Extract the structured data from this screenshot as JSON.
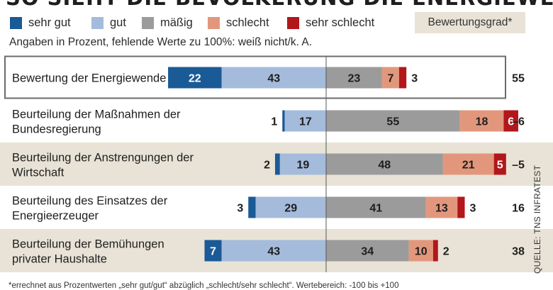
{
  "title": "SO SIEHT DIE BEVÖLKERUNG DIE ENERGIEWENDE",
  "legend": {
    "items": [
      {
        "label": "sehr gut",
        "color": "#1a5a96"
      },
      {
        "label": "gut",
        "color": "#a5bbdc"
      },
      {
        "label": "mäßig",
        "color": "#9b9b9b"
      },
      {
        "label": "schlecht",
        "color": "#e2977c"
      },
      {
        "label": "sehr schlecht",
        "color": "#b1171b"
      }
    ],
    "score_header": "Bewertungsgrad*"
  },
  "subtitle": "Angaben in Prozent, fehlende Werte zu 100%: weiß nicht/k. A.",
  "footnote": "*errechnet aus Prozentwerten „sehr gut/gut“ abzüglich „schlecht/sehr schlecht“. Wertebereich: -100 bis +100",
  "source": "QUELLE: TNS INFRATEST",
  "chart_data": {
    "type": "bar",
    "subtype": "diverging-stacked-horizontal",
    "categories": [
      "Bewertung der Energiewende",
      "Beurteilung der Maßnahmen der Bundesregierung",
      "Beurteilung der Anstrengungen der Wirtschaft",
      "Beurteilung des Einsatzes der Energieerzeuger",
      "Beurteilung der Bemühungen privater Haushalte"
    ],
    "category_lines": [
      [
        "Bewertung der Energiewende"
      ],
      [
        "Beurteilung der Maßnahmen der",
        "Bundesregierung"
      ],
      [
        "Beurteilung der Anstrengungen der",
        "Wirtschaft"
      ],
      [
        "Beurteilung des Einsatzes der",
        "Energieerzeuger"
      ],
      [
        "Beurteilung der Bemühungen",
        "privater Haushalte"
      ]
    ],
    "series": [
      {
        "name": "sehr gut",
        "values": [
          22,
          1,
          2,
          3,
          7
        ]
      },
      {
        "name": "gut",
        "values": [
          43,
          17,
          19,
          29,
          43
        ]
      },
      {
        "name": "mäßig",
        "values": [
          23,
          55,
          48,
          41,
          34
        ]
      },
      {
        "name": "schlecht",
        "values": [
          7,
          18,
          21,
          13,
          10
        ]
      },
      {
        "name": "sehr schlecht",
        "values": [
          3,
          6,
          5,
          3,
          2
        ]
      }
    ],
    "bewertungsgrad": [
      "55",
      "–6",
      "–5",
      "16",
      "38"
    ],
    "highlight_row": 0,
    "unit": "Prozent"
  }
}
